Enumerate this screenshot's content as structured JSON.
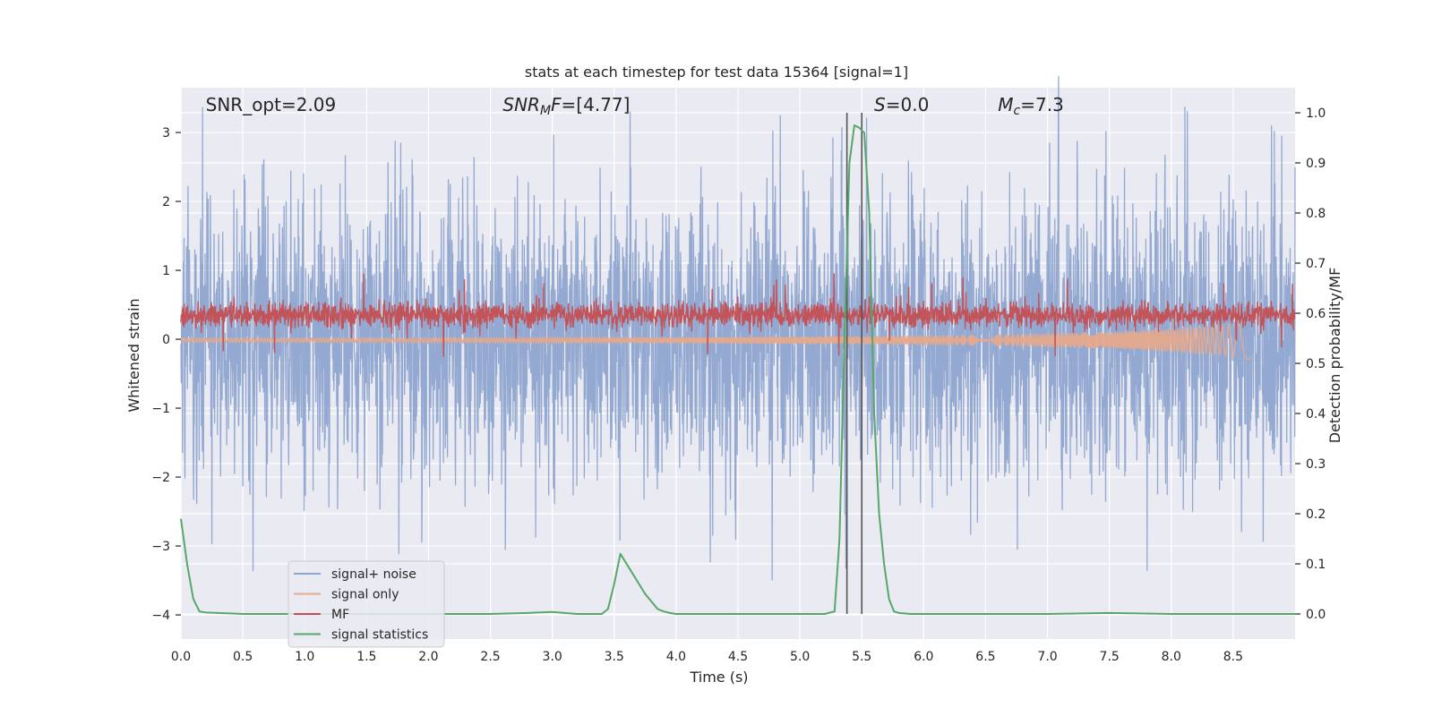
{
  "chart_data": {
    "type": "line",
    "title": "stats at each timestep for test data 15364 [signal=1]",
    "xlabel": "Time (s)",
    "ylabel_left": "Whitened strain",
    "ylabel_right": "Detection probability/MF",
    "xlim": [
      0.0,
      9.0
    ],
    "ylim_left": [
      -4.35,
      3.65
    ],
    "ylim_right": [
      -0.05,
      1.05
    ],
    "x_ticks": [
      0.0,
      0.5,
      1.0,
      1.5,
      2.0,
      2.5,
      3.0,
      3.5,
      4.0,
      4.5,
      5.0,
      5.5,
      6.0,
      6.5,
      7.0,
      7.5,
      8.0,
      8.5
    ],
    "x_tick_labels": [
      "0.0",
      "0.5",
      "1.0",
      "1.5",
      "2.0",
      "2.5",
      "3.0",
      "3.5",
      "4.0",
      "4.5",
      "5.0",
      "5.5",
      "6.0",
      "6.5",
      "7.0",
      "7.5",
      "8.0",
      "8.5"
    ],
    "y_left_ticks": [
      -4,
      -3,
      -2,
      -1,
      0,
      1,
      2,
      3
    ],
    "y_left_tick_labels": [
      "−4",
      "−3",
      "−2",
      "−1",
      "0",
      "1",
      "2",
      "3"
    ],
    "y_right_ticks": [
      0.0,
      0.1,
      0.2,
      0.3,
      0.4,
      0.5,
      0.6,
      0.7,
      0.8,
      0.9,
      1.0
    ],
    "y_right_tick_labels": [
      "0.0",
      "0.1",
      "0.2",
      "0.3",
      "0.4",
      "0.5",
      "0.6",
      "0.7",
      "0.8",
      "0.9",
      "1.0"
    ],
    "grid": true,
    "legend_placement": "lower-left",
    "annotations": [
      {
        "id": "snr-opt",
        "parts": [
          {
            "text": "SNR_opt=2.09",
            "style": "normal"
          }
        ],
        "x": 0.2
      },
      {
        "id": "snr-mf",
        "parts": [
          {
            "text": "SNR",
            "style": "italic"
          },
          {
            "text": "M",
            "style": "italic-sub"
          },
          {
            "text": "F",
            "style": "italic"
          },
          {
            "text": "=[4.77]",
            "style": "normal"
          }
        ],
        "x": 2.6
      },
      {
        "id": "s-stat",
        "parts": [
          {
            "text": "S",
            "style": "italic"
          },
          {
            "text": "=0.0",
            "style": "normal"
          }
        ],
        "x": 5.6
      },
      {
        "id": "chirp-mass",
        "parts": [
          {
            "text": "M",
            "style": "italic"
          },
          {
            "text": "c",
            "style": "italic-sub"
          },
          {
            "text": "=7.3",
            "style": "normal"
          }
        ],
        "x": 6.6
      }
    ],
    "vertical_lines": [
      5.38,
      5.5
    ],
    "series": [
      {
        "name": "signal+ noise",
        "color": "#8fa5cf",
        "axis": "left",
        "style": "noise-band",
        "x_range": [
          0.0,
          9.0
        ],
        "mean": 0.0,
        "std": 1.0,
        "peak_range": [
          2.0,
          3.4
        ]
      },
      {
        "name": "signal only",
        "color": "#e5a98c",
        "axis": "left",
        "style": "chirp",
        "x_range": [
          0.0,
          8.65
        ],
        "envelope": [
          [
            0.0,
            0.03
          ],
          [
            2.0,
            0.035
          ],
          [
            4.0,
            0.04
          ],
          [
            5.5,
            0.06
          ],
          [
            6.5,
            0.08
          ],
          [
            7.5,
            0.12
          ],
          [
            8.0,
            0.17
          ],
          [
            8.4,
            0.22
          ],
          [
            8.65,
            0.28
          ]
        ]
      },
      {
        "name": "MF",
        "color": "#c44e52",
        "axis": "right",
        "style": "noise-band",
        "x_range": [
          0.0,
          9.0
        ],
        "mean": 0.597,
        "std": 0.012,
        "peak_range": [
          0.62,
          0.68
        ]
      },
      {
        "name": "signal statistics",
        "color": "#55a868",
        "axis": "right",
        "style": "line",
        "x": [
          0.0,
          0.05,
          0.1,
          0.15,
          0.2,
          0.3,
          0.5,
          1.0,
          2.0,
          2.5,
          2.8,
          3.0,
          3.2,
          3.4,
          3.45,
          3.5,
          3.55,
          3.6,
          3.65,
          3.7,
          3.75,
          3.8,
          3.85,
          3.9,
          3.95,
          4.0,
          4.5,
          5.0,
          5.2,
          5.28,
          5.32,
          5.36,
          5.4,
          5.44,
          5.48,
          5.52,
          5.56,
          5.6,
          5.64,
          5.68,
          5.72,
          5.76,
          5.8,
          5.9,
          6.5,
          7.0,
          7.5,
          8.0,
          8.5,
          9.0
        ],
        "y": [
          0.19,
          0.1,
          0.03,
          0.005,
          0.003,
          0.002,
          0.0,
          0.0,
          0.0,
          0.0,
          0.002,
          0.004,
          0.0,
          0.0,
          0.01,
          0.06,
          0.12,
          0.1,
          0.08,
          0.06,
          0.04,
          0.025,
          0.01,
          0.005,
          0.002,
          0.0,
          0.0,
          0.0,
          0.0,
          0.005,
          0.15,
          0.55,
          0.9,
          0.975,
          0.97,
          0.96,
          0.8,
          0.4,
          0.2,
          0.1,
          0.03,
          0.005,
          0.002,
          0.0,
          0.0,
          0.0,
          0.002,
          0.0,
          0.0,
          0.0
        ]
      }
    ]
  }
}
